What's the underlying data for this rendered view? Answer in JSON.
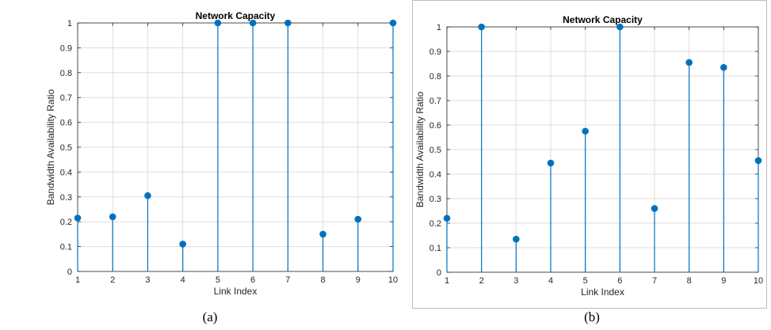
{
  "chart_data": [
    {
      "type": "stem",
      "title": "Network Capacity",
      "xlabel": "Link Index",
      "ylabel": "Bandwidth Availability Ratio",
      "xlim": [
        1,
        10
      ],
      "ylim": [
        0,
        1
      ],
      "xticks": [
        1,
        2,
        3,
        4,
        5,
        6,
        7,
        8,
        9,
        10
      ],
      "yticks": [
        0,
        0.1,
        0.2,
        0.3,
        0.4,
        0.5,
        0.6,
        0.7,
        0.8,
        0.9,
        1
      ],
      "grid": true,
      "color": "#0072BD",
      "x": [
        1,
        2,
        3,
        4,
        5,
        6,
        7,
        8,
        9,
        10
      ],
      "y": [
        0.215,
        0.22,
        0.305,
        0.11,
        1.0,
        1.0,
        1.0,
        0.15,
        0.21,
        1.0
      ]
    },
    {
      "type": "stem",
      "title": "Network Capacity",
      "xlabel": "Link Index",
      "ylabel": "Bandwidth Availability Ratio",
      "xlim": [
        1,
        10
      ],
      "ylim": [
        0,
        1
      ],
      "xticks": [
        1,
        2,
        3,
        4,
        5,
        6,
        7,
        8,
        9,
        10
      ],
      "yticks": [
        0,
        0.1,
        0.2,
        0.3,
        0.4,
        0.5,
        0.6,
        0.7,
        0.8,
        0.9,
        1
      ],
      "grid": true,
      "color": "#0072BD",
      "x": [
        1,
        2,
        3,
        4,
        5,
        6,
        7,
        8,
        9,
        10
      ],
      "y": [
        0.22,
        1.0,
        0.135,
        0.445,
        0.575,
        1.0,
        0.26,
        0.855,
        0.835,
        0.455
      ]
    }
  ],
  "captions": [
    "(a)",
    "(b)"
  ]
}
